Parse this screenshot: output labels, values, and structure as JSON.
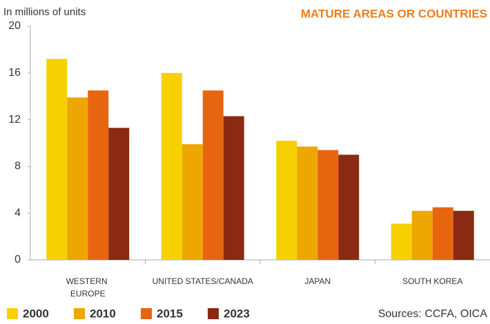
{
  "chart_data": {
    "type": "bar",
    "title": "MATURE AREAS OR COUNTRIES",
    "y_label": "In millions of units",
    "source": "Sources: CCFA, OICA",
    "categories": [
      "WESTERN EUROPE",
      "UNITED STATES/CANADA",
      "JAPAN",
      "SOUTH KOREA"
    ],
    "series": [
      {
        "name": "2000",
        "color": "#f7d000",
        "values": [
          17.2,
          16.0,
          10.2,
          3.1
        ]
      },
      {
        "name": "2010",
        "color": "#eda700",
        "values": [
          13.9,
          9.9,
          9.7,
          4.2
        ]
      },
      {
        "name": "2015",
        "color": "#e8650f",
        "values": [
          14.5,
          14.5,
          9.4,
          4.5
        ]
      },
      {
        "name": "2023",
        "color": "#8b2a12",
        "values": [
          11.3,
          12.3,
          9.0,
          4.2
        ]
      }
    ],
    "ylim": [
      0,
      20
    ],
    "yticks": [
      0,
      4,
      8,
      12,
      16,
      20
    ],
    "grid": false
  }
}
